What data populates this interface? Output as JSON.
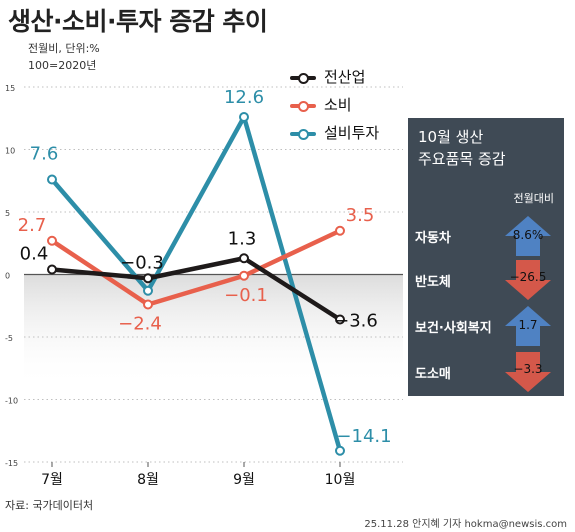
{
  "title": "생산·소비·투자 증감 추이",
  "note_1": "전월비, 단위:%",
  "note_2": "100=2020년",
  "source": "자료: 국가데이터처",
  "credit": "25.11.28 안지혜 기자 hokma@newsis.com",
  "colors": {
    "production": "#1e1a1a",
    "consumption": "#e8604c",
    "investment": "#2d8ea8",
    "up": "#4f82c3",
    "down": "#d4584a",
    "panel": "#3f4a55"
  },
  "chart_data": {
    "type": "line",
    "categories": [
      "7월",
      "8월",
      "9월",
      "10월"
    ],
    "ylim": [
      -15,
      15
    ],
    "yticks": [
      15,
      10,
      5,
      0,
      -5,
      -10,
      -15
    ],
    "series": [
      {
        "name": "전산업",
        "values": [
          0.4,
          -0.3,
          1.3,
          -3.6
        ],
        "labels": [
          "0.4",
          "−0.3",
          "1.3",
          "−3.6"
        ]
      },
      {
        "name": "소비",
        "values": [
          2.7,
          -2.4,
          -0.1,
          3.5
        ],
        "labels": [
          "2.7",
          "−2.4",
          "−0.1",
          "3.5"
        ]
      },
      {
        "name": "설비투자",
        "values": [
          7.6,
          -1.3,
          12.6,
          -14.1
        ],
        "labels": [
          "7.6",
          "",
          "12.6",
          "−14.1"
        ]
      }
    ]
  },
  "panel": {
    "title_line1": "10월 생산",
    "title_line2": "주요품목 증감",
    "subtitle": "전월대비",
    "items": [
      {
        "label": "자동차",
        "value": "8.6%",
        "direction": "up"
      },
      {
        "label": "반도체",
        "value": "−26.5",
        "direction": "down"
      },
      {
        "label": "보건·사회복지",
        "value": "1.7",
        "direction": "up"
      },
      {
        "label": "도소매",
        "value": "−3.3",
        "direction": "down"
      }
    ]
  }
}
